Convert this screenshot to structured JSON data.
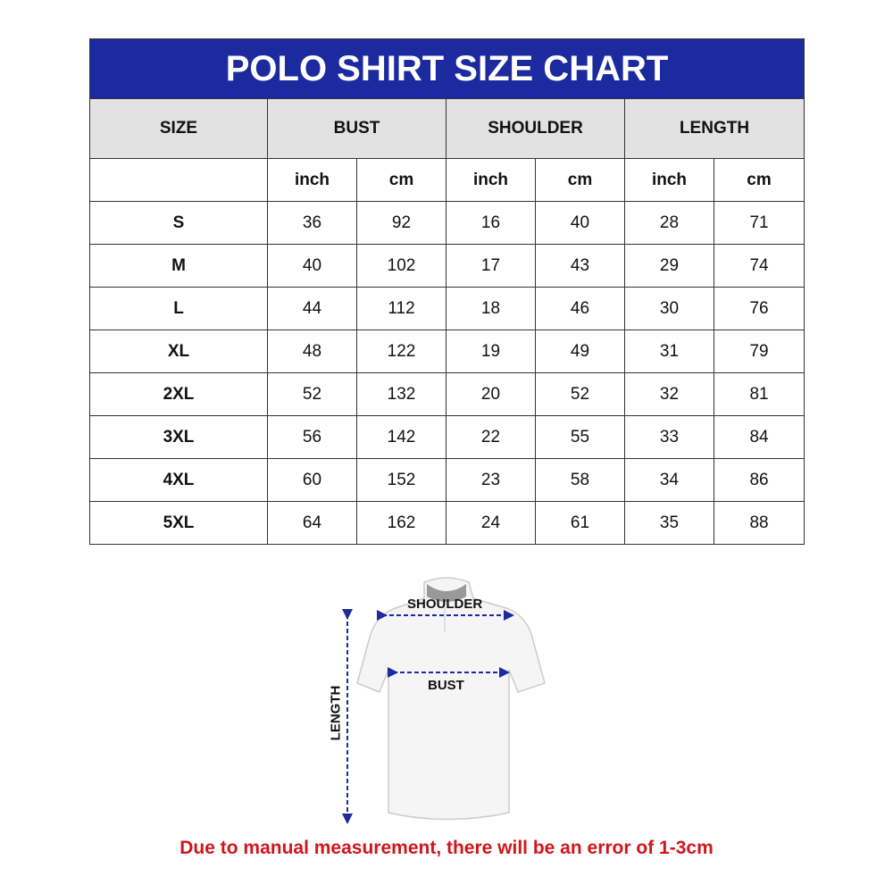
{
  "title": "POLO SHIRT SIZE CHART",
  "headers": {
    "size": "SIZE",
    "bust": "BUST",
    "shoulder": "SHOULDER",
    "length": "LENGTH"
  },
  "units": [
    "inch",
    "cm",
    "inch",
    "cm",
    "inch",
    "cm"
  ],
  "rows": [
    [
      "S",
      "36",
      "92",
      "16",
      "40",
      "28",
      "71"
    ],
    [
      "M",
      "40",
      "102",
      "17",
      "43",
      "29",
      "74"
    ],
    [
      "L",
      "44",
      "112",
      "18",
      "46",
      "30",
      "76"
    ],
    [
      "XL",
      "48",
      "122",
      "19",
      "49",
      "31",
      "79"
    ],
    [
      "2XL",
      "52",
      "132",
      "20",
      "52",
      "32",
      "81"
    ],
    [
      "3XL",
      "56",
      "142",
      "22",
      "55",
      "33",
      "84"
    ],
    [
      "4XL",
      "60",
      "152",
      "23",
      "58",
      "34",
      "86"
    ],
    [
      "5XL",
      "64",
      "162",
      "24",
      "61",
      "35",
      "88"
    ]
  ],
  "diagram": {
    "shoulder": "SHOULDER",
    "bust": "BUST",
    "length": "LENGTH"
  },
  "note": "Due to manual measurement, there will be an error of 1-3cm",
  "colors": {
    "title_bg": "#1b2a9e",
    "header_bg": "#e2e2e2",
    "note": "#d0161b",
    "arrows": "#1b2a9e"
  }
}
